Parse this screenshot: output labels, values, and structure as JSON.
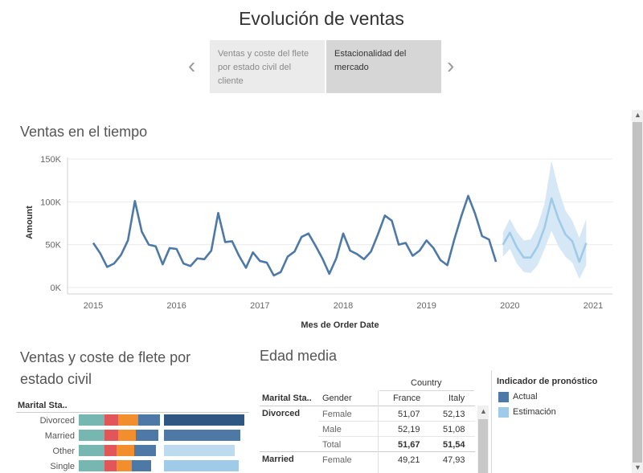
{
  "story": {
    "title": "Evolución de ventas",
    "prev_icon": "‹",
    "next_icon": "›",
    "points": [
      {
        "label": "Ventas y coste del flete por estado civil del cliente"
      },
      {
        "label": "Estacionalidad del mercado"
      }
    ]
  },
  "chart_title": "Ventas en el tiempo",
  "chart_data": {
    "type": "line",
    "title": "Ventas en el tiempo",
    "xlabel": "Mes de Order Date",
    "ylabel": "Amount",
    "x_ticks": [
      "2015",
      "2016",
      "2017",
      "2018",
      "2019",
      "2020",
      "2021"
    ],
    "y_ticks": [
      "0K",
      "50K",
      "100K",
      "150K"
    ],
    "ylim": [
      0,
      150000
    ],
    "x_start": 2015.0,
    "x_end": 2021.0,
    "series": [
      {
        "name": "Actual",
        "x_start": 2015.0,
        "step_months": 1,
        "values": [
          52000,
          40000,
          24000,
          28000,
          38000,
          55000,
          101000,
          65000,
          50000,
          48000,
          27000,
          46000,
          45000,
          28000,
          25000,
          34000,
          33000,
          43000,
          87000,
          53000,
          54000,
          37000,
          23000,
          41000,
          31000,
          29000,
          14000,
          18000,
          36000,
          42000,
          59000,
          63000,
          49000,
          34000,
          16000,
          34000,
          63000,
          43000,
          39000,
          33000,
          42000,
          62000,
          84000,
          78000,
          50000,
          52000,
          37000,
          43000,
          55000,
          46000,
          32000,
          26000,
          56000,
          83000,
          107000,
          86000,
          60000,
          56000,
          30000
        ]
      },
      {
        "name": "Estimación",
        "x_start": 2019.9167,
        "step_months": 1,
        "values": [
          50000,
          64000,
          47000,
          35000,
          35000,
          48000,
          70000,
          104000,
          80000,
          62000,
          54000,
          30000,
          52000
        ],
        "upper": [
          64000,
          80000,
          65000,
          55000,
          56000,
          72000,
          98000,
          148000,
          115000,
          90000,
          78000,
          58000,
          80000
        ],
        "lower": [
          36000,
          45000,
          28000,
          18000,
          17000,
          26000,
          45000,
          66000,
          48000,
          36000,
          29000,
          10000,
          26000
        ]
      }
    ]
  },
  "colors": {
    "actual": "#4e79a7",
    "estimate": "#a0cbe8",
    "band": "#d6e8f6",
    "grid": "#ebebeb"
  },
  "marital": {
    "title": "Ventas y coste de flete por estado civil",
    "header": "Marital Sta..",
    "rows": [
      {
        "label": "Divorced",
        "segments": [
          32,
          17,
          25,
          27
        ],
        "bar": 100,
        "bar_color": "#2f5784"
      },
      {
        "label": "Married",
        "segments": [
          32,
          17,
          22,
          28
        ],
        "bar": 95,
        "bar_color": "#4e79a7"
      },
      {
        "label": "Other",
        "segments": [
          32,
          15,
          22,
          27
        ],
        "bar": 88,
        "bar_color": "#bcdbef"
      },
      {
        "label": "Single",
        "segments": [
          32,
          15,
          19,
          24
        ],
        "bar": 93,
        "bar_color": "#a0cbe8"
      }
    ],
    "seg_colors": [
      "#76b7b2",
      "#e15759",
      "#f28e2b",
      "#4e79a7"
    ]
  },
  "age": {
    "title": "Edad media",
    "country_header": "Country",
    "col_headers": [
      "Marital Sta..",
      "Gender",
      "France",
      "Italy"
    ],
    "rows": [
      {
        "status": "Divorced",
        "gender": "Female",
        "france": "51,07",
        "italy": "52,13"
      },
      {
        "status": "",
        "gender": "Male",
        "france": "52,19",
        "italy": "51,08"
      },
      {
        "status": "",
        "gender": "Total",
        "france": "51,67",
        "italy": "51,54"
      },
      {
        "status": "Married",
        "gender": "Female",
        "france": "49,21",
        "italy": "47,93"
      }
    ]
  },
  "legend": {
    "title": "Indicador de pronóstico",
    "items": [
      {
        "label": "Actual",
        "color": "#4e79a7"
      },
      {
        "label": "Estimación",
        "color": "#a0cbe8"
      }
    ]
  },
  "scroll_icons": {
    "up": "▲",
    "down": "▼"
  }
}
